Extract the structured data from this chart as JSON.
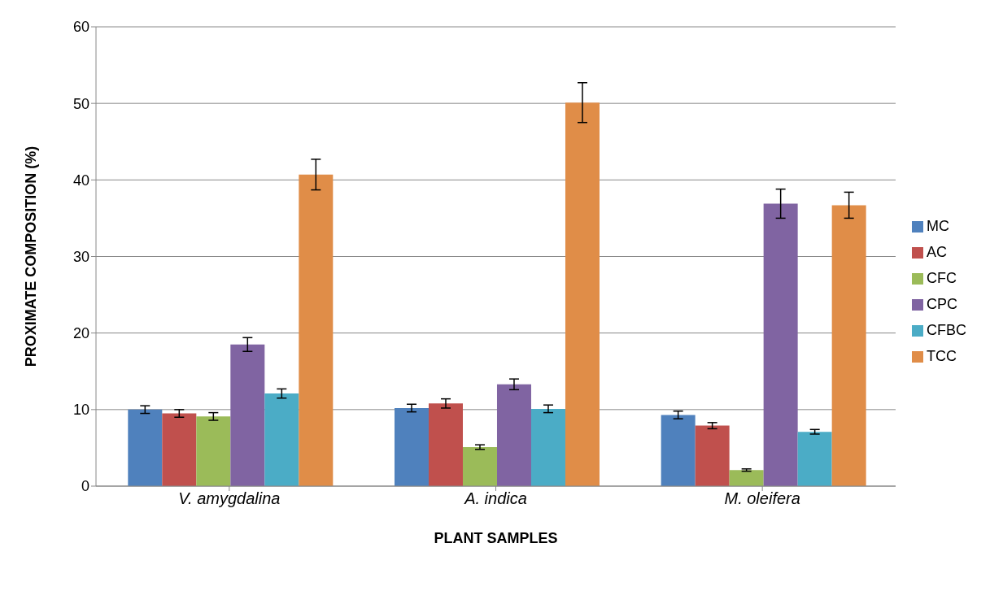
{
  "chart_data": {
    "type": "bar",
    "xlabel": "PLANT SAMPLES",
    "ylabel": "PROXIMATE COMPOSITION (%)",
    "categories": [
      "V. amygdalina",
      "A. indica",
      "M. oleifera"
    ],
    "series": [
      {
        "name": "MC",
        "color": "#4f81bd",
        "values": [
          10.0,
          10.2,
          9.3
        ],
        "errors": [
          0.5,
          0.5,
          0.5
        ]
      },
      {
        "name": "AC",
        "color": "#c0504d",
        "values": [
          9.5,
          10.8,
          7.9
        ],
        "errors": [
          0.5,
          0.6,
          0.4
        ]
      },
      {
        "name": "CFC",
        "color": "#9bbb59",
        "values": [
          9.1,
          5.1,
          2.1
        ],
        "errors": [
          0.5,
          0.3,
          0.15
        ]
      },
      {
        "name": "CPC",
        "color": "#8064a2",
        "values": [
          18.5,
          13.3,
          36.9
        ],
        "errors": [
          0.9,
          0.7,
          1.9
        ]
      },
      {
        "name": "CFBC",
        "color": "#4bacc6",
        "values": [
          12.1,
          10.1,
          7.1
        ],
        "errors": [
          0.6,
          0.5,
          0.3
        ]
      },
      {
        "name": "TCC",
        "color": "#e08d48",
        "values": [
          40.7,
          50.1,
          36.7
        ],
        "errors": [
          2.0,
          2.6,
          1.7
        ]
      }
    ],
    "ylim": [
      0,
      60
    ],
    "yticks": [
      0,
      10,
      20,
      30,
      40,
      50,
      60
    ],
    "grid": "y",
    "legend": "right"
  }
}
